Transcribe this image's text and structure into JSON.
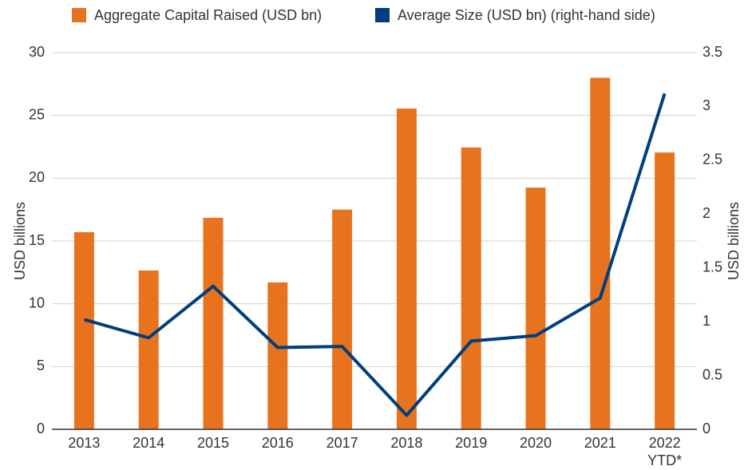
{
  "chart_data": {
    "type": "bar",
    "categories": [
      "2013",
      "2014",
      "2015",
      "2016",
      "2017",
      "2018",
      "2019",
      "2020",
      "2021",
      "2022 YTD*"
    ],
    "series": [
      {
        "name": "Aggregate Capital Raised (USD bn)",
        "color": "#e8731f",
        "type": "bar",
        "values": [
          15.7,
          12.65,
          16.85,
          11.7,
          17.5,
          25.55,
          22.45,
          19.25,
          28.0,
          22.05
        ]
      },
      {
        "name": "Average Size (USD bn) (right-hand side)",
        "color": "#003f7d",
        "type": "line",
        "axis": "y2",
        "values": [
          1.02,
          0.85,
          1.33,
          0.76,
          0.77,
          0.13,
          0.82,
          0.87,
          1.22,
          3.12
        ]
      }
    ],
    "ylabel": "USD billions",
    "y2label": "USD billions",
    "ylim": [
      0,
      30
    ],
    "yticks": [
      0,
      5,
      10,
      15,
      20,
      25,
      30
    ],
    "y2lim": [
      0,
      3.5
    ],
    "y2ticks": [
      0,
      0.5,
      1,
      1.5,
      2,
      2.5,
      3,
      3.5
    ],
    "grid": true,
    "legend": "top"
  }
}
